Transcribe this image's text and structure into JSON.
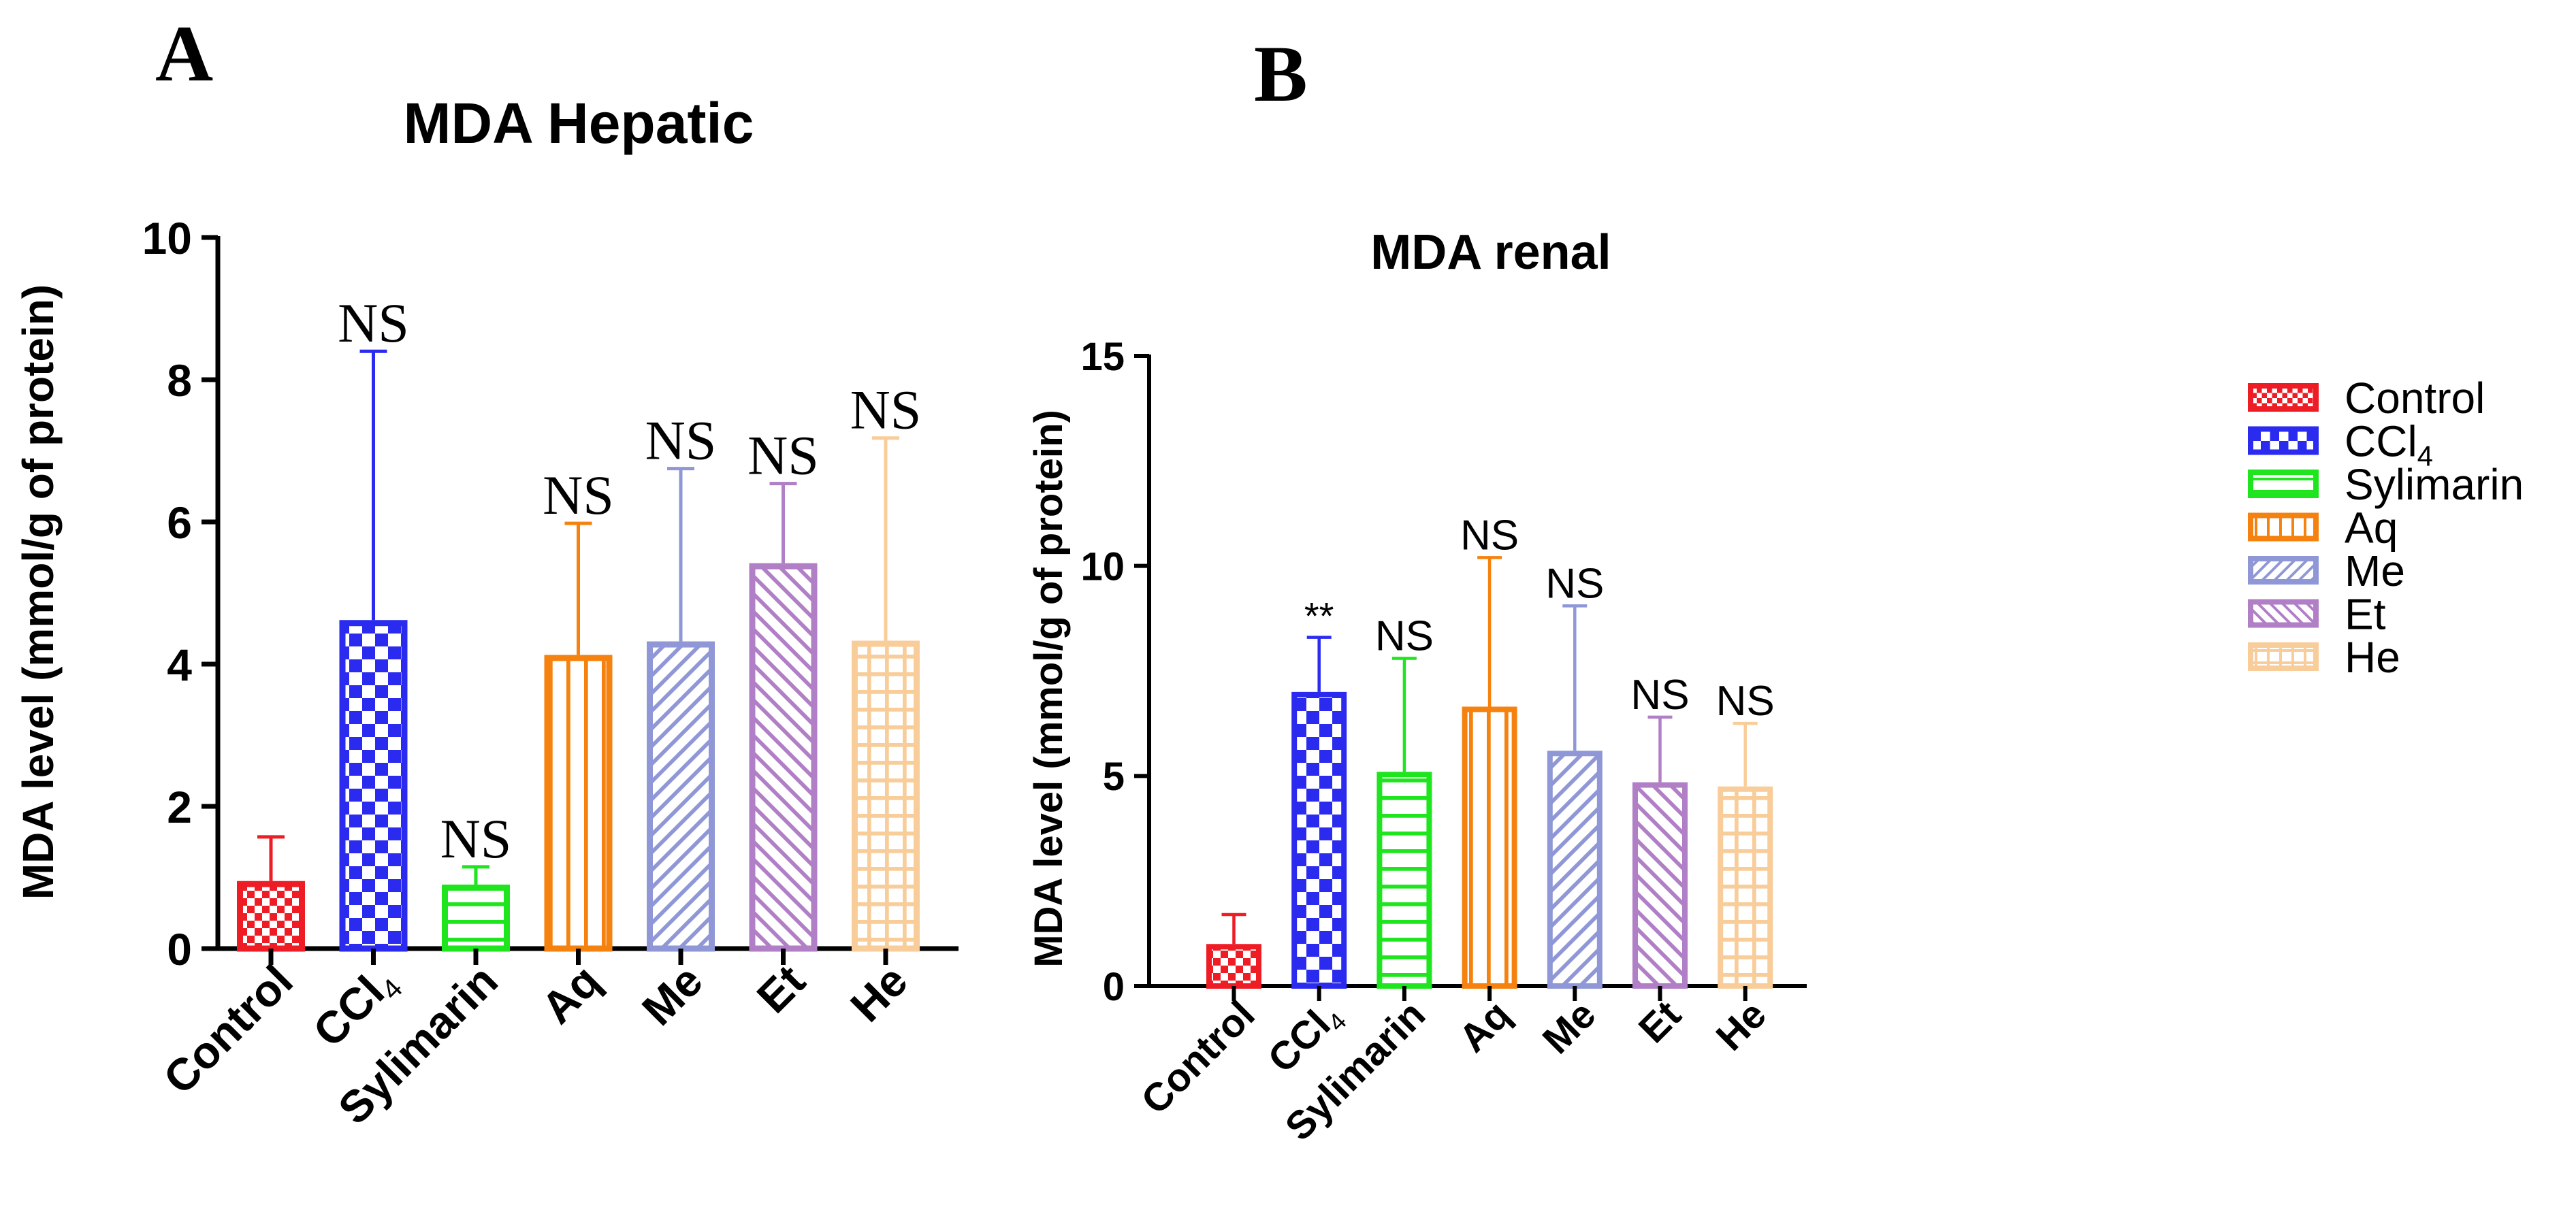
{
  "panels": {
    "A": {
      "letter": "A"
    },
    "B": {
      "letter": "B"
    }
  },
  "legend": {
    "items": [
      {
        "label": "Control",
        "sub": "",
        "color": "#ee1c25",
        "pattern": "checker"
      },
      {
        "label": "CCl",
        "sub": "4",
        "color": "#2b2bf0",
        "pattern": "bigchecker"
      },
      {
        "label": "Sylimarin",
        "sub": "",
        "color": "#1fe51f",
        "pattern": "hlines"
      },
      {
        "label": "Aq",
        "sub": "",
        "color": "#f5820f",
        "pattern": "vlines"
      },
      {
        "label": "Me",
        "sub": "",
        "color": "#8f97d6",
        "pattern": "diagright"
      },
      {
        "label": "Et",
        "sub": "",
        "color": "#b07fc6",
        "pattern": "diagleft"
      },
      {
        "label": "He",
        "sub": "",
        "color": "#f9cd9a",
        "pattern": "grid"
      }
    ]
  },
  "chart_data": [
    {
      "panel": "A",
      "type": "bar",
      "title": "MDA Hepatic",
      "xlabel": "",
      "ylabel": "MDA level (mmol/g of protein)",
      "ylim": [
        0,
        10
      ],
      "yticks": [
        0,
        2,
        4,
        6,
        8,
        10
      ],
      "categories": [
        {
          "label": "Control",
          "sub": ""
        },
        {
          "label": "CCl",
          "sub": "4"
        },
        {
          "label": "Sylimarin",
          "sub": ""
        },
        {
          "label": "Aq",
          "sub": ""
        },
        {
          "label": "Me",
          "sub": ""
        },
        {
          "label": "Et",
          "sub": ""
        },
        {
          "label": "He",
          "sub": ""
        }
      ],
      "values": [
        0.95,
        4.62,
        0.9,
        4.13,
        4.32,
        5.42,
        4.33
      ],
      "errors": [
        0.62,
        3.78,
        0.25,
        1.85,
        2.43,
        1.12,
        2.85
      ],
      "annotations": [
        "",
        "NS",
        "NS",
        "NS",
        "NS",
        "NS",
        "NS"
      ]
    },
    {
      "panel": "B",
      "type": "bar",
      "title": "MDA renal",
      "xlabel": "",
      "ylabel": "MDA level (mmol/g of protein)",
      "ylim": [
        0,
        15
      ],
      "yticks": [
        0,
        5,
        10,
        15
      ],
      "categories": [
        {
          "label": "Control",
          "sub": ""
        },
        {
          "label": "CCl",
          "sub": "4"
        },
        {
          "label": "Sylimarin",
          "sub": ""
        },
        {
          "label": "Aq",
          "sub": ""
        },
        {
          "label": "Me",
          "sub": ""
        },
        {
          "label": "Et",
          "sub": ""
        },
        {
          "label": "He",
          "sub": ""
        }
      ],
      "values": [
        1.0,
        7.0,
        5.1,
        6.65,
        5.6,
        4.85,
        4.75
      ],
      "errors": [
        0.7,
        1.3,
        2.7,
        3.55,
        3.45,
        1.55,
        1.5
      ],
      "annotations": [
        "",
        "**",
        "NS",
        "NS",
        "NS",
        "NS",
        "NS"
      ]
    }
  ]
}
